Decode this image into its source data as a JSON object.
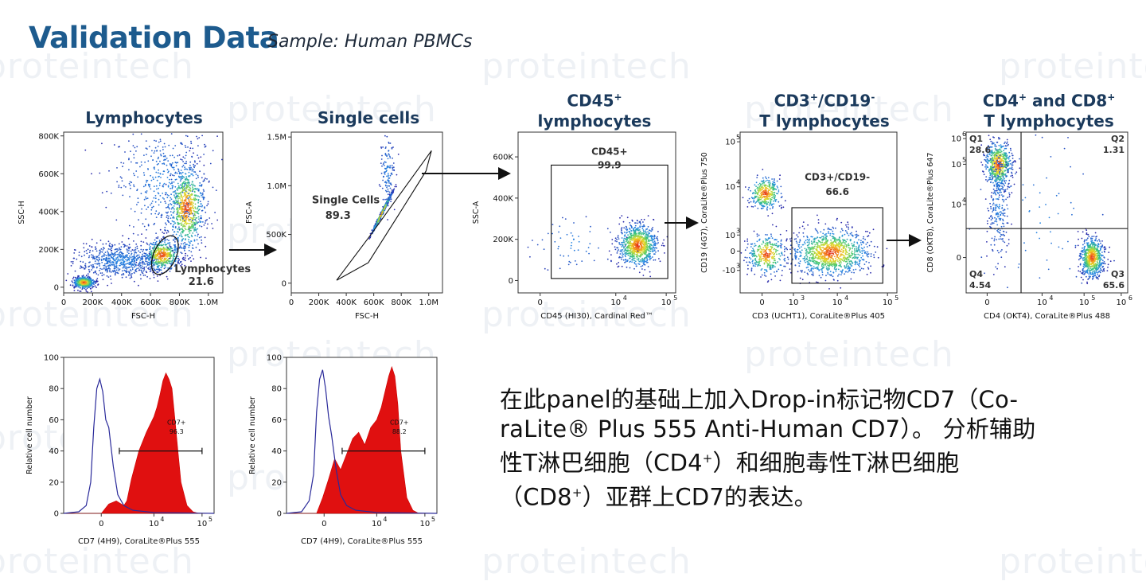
{
  "header": {
    "title": "Validation Data",
    "subtitle": "Sample: Human PBMCs"
  },
  "watermark": {
    "text": "proteintech"
  },
  "panels_titles": {
    "p1": "Lymphocytes",
    "p2": "Single cells",
    "p3_line1": "CD45",
    "p3_sup": "+",
    "p3_line2": "lymphocytes",
    "p4_line1a": "CD3",
    "p4_sup1": "+",
    "p4_line1b": "/CD19",
    "p4_sup2": "-",
    "p4_line2": "T lymphocytes",
    "p5_line1a": "CD4",
    "p5_sup1": "+",
    "p5_line1b": " and CD8",
    "p5_sup2": "+",
    "p5_line2": "T lymphocytes"
  },
  "description": {
    "line1": "在此panel的基础上加入Drop-in标记物CD7（Co-",
    "line2": "raLite® Plus 555 Anti-Human CD7）。 分析辅助",
    "line3a": "性T淋巴细胞（CD4",
    "line3sup": "+",
    "line3b": "）和细胞毒性T淋巴细胞",
    "line4a": "（CD8",
    "line4sup": "+",
    "line4b": "）亚群上CD7的表达。"
  },
  "chart_data": [
    {
      "type": "scatter",
      "xlabel": "FSC-H",
      "ylabel": "SSC-H",
      "xticks": [
        "0",
        "200K",
        "400K",
        "600K",
        "800K",
        "1.0M"
      ],
      "yticks": [
        "0",
        "200K",
        "400K",
        "600K",
        "800K"
      ],
      "xlim": [
        0,
        1100000
      ],
      "ylim": [
        -30000,
        820000
      ],
      "gate": {
        "shape": "ellipse",
        "name": "Lymphocytes",
        "percent": "21.6"
      },
      "clusters": [
        {
          "x": 140000,
          "y": 25000,
          "sx": 35000,
          "sy": 15000,
          "n": 500,
          "dense": true
        },
        {
          "x": 400000,
          "y": 140000,
          "sx": 150000,
          "sy": 45000,
          "n": 700,
          "dense": false
        },
        {
          "x": 680000,
          "y": 170000,
          "sx": 60000,
          "sy": 40000,
          "n": 500,
          "dense": true
        },
        {
          "x": 850000,
          "y": 420000,
          "sx": 60000,
          "sy": 110000,
          "n": 800,
          "dense": true
        },
        {
          "x": 700000,
          "y": 550000,
          "sx": 180000,
          "sy": 150000,
          "n": 450,
          "dense": false
        }
      ]
    },
    {
      "type": "scatter",
      "xlabel": "FSC-H",
      "ylabel": "FSC-A",
      "xticks": [
        "0",
        "200K",
        "400K",
        "600K",
        "800K",
        "1.0M"
      ],
      "yticks": [
        "0",
        "500K",
        "1.0M",
        "1.5M"
      ],
      "xlim": [
        0,
        1100000
      ],
      "ylim": [
        -100000,
        1550000
      ],
      "gate": {
        "shape": "polygon",
        "name": "Single Cells",
        "percent": "89.3"
      },
      "clusters": [
        {
          "x": 660000,
          "y": 720000,
          "sx": 35000,
          "sy": 110000,
          "n": 700,
          "dense": true,
          "corr": 0.9
        },
        {
          "x": 700000,
          "y": 1150000,
          "sx": 25000,
          "sy": 180000,
          "n": 120,
          "dense": false
        }
      ]
    },
    {
      "type": "scatter",
      "xlabel": "CD45 (HI30), Cardinal Red™",
      "ylabel": "SSC-A",
      "xticks": [
        "0",
        "10",
        "10"
      ],
      "xtick_exp": [
        "",
        "4",
        "5"
      ],
      "yticks": [
        "0",
        "200K",
        "400K",
        "600K"
      ],
      "xlim": [
        0,
        100
      ],
      "ylim": [
        -60000,
        720000
      ],
      "gate": {
        "shape": "rect",
        "name": "CD45+",
        "percent": "99.9"
      },
      "clusters": [
        {
          "x": 76,
          "y": 170000,
          "sx": 6,
          "sy": 50000,
          "n": 900,
          "dense": true
        },
        {
          "x": 35,
          "y": 180000,
          "sx": 14,
          "sy": 70000,
          "n": 60,
          "dense": false
        }
      ]
    },
    {
      "type": "scatter",
      "xlabel": "CD3 (UCHT1), CoraLite®Plus 405",
      "ylabel": "CD19 (4G7), CoraLite®Plus 750",
      "xticks": [
        "0",
        "10",
        "10",
        "10"
      ],
      "xtick_exp": [
        "",
        "3",
        "4",
        "5"
      ],
      "yticks": [
        "-10",
        "0",
        "10",
        "10",
        "10"
      ],
      "ytick_exp": [
        "3",
        "",
        "3",
        "4",
        "5"
      ],
      "xlim": [
        0,
        100
      ],
      "ylim": [
        0,
        100
      ],
      "gate": {
        "shape": "rect",
        "name": "CD3+/CD19-",
        "percent": "66.6"
      },
      "clusters": [
        {
          "x": 16,
          "y": 62,
          "sx": 5,
          "sy": 5,
          "n": 350,
          "dense": true
        },
        {
          "x": 17,
          "y": 24,
          "sx": 6,
          "sy": 6,
          "n": 350,
          "dense": true
        },
        {
          "x": 58,
          "y": 25,
          "sx": 12,
          "sy": 7,
          "n": 1100,
          "dense": true
        }
      ]
    },
    {
      "type": "scatter",
      "xlabel": "CD4 (OKT4), CoraLite®Plus 488",
      "ylabel": "CD8 (OKT8), CoraLite®Plus 647",
      "xticks": [
        "0",
        "10",
        "10",
        "10"
      ],
      "xtick_exp": [
        "",
        "4",
        "5",
        "6"
      ],
      "yticks": [
        "0",
        "10",
        "10",
        "10"
      ],
      "ytick_exp": [
        "",
        "4",
        "5",
        "6"
      ],
      "xlim": [
        0,
        100
      ],
      "ylim": [
        0,
        100
      ],
      "quadrants": {
        "Q1": "28.6",
        "Q2": "1.31",
        "Q3": "65.6",
        "Q4": "4.54"
      },
      "clusters": [
        {
          "x": 20,
          "y": 80,
          "sx": 4,
          "sy": 7,
          "n": 600,
          "dense": true
        },
        {
          "x": 20,
          "y": 55,
          "sx": 3,
          "sy": 18,
          "n": 250,
          "dense": false
        },
        {
          "x": 78,
          "y": 22,
          "sx": 3.5,
          "sy": 6,
          "n": 700,
          "dense": true
        },
        {
          "x": 45,
          "y": 45,
          "sx": 25,
          "sy": 30,
          "n": 80,
          "dense": false
        }
      ]
    },
    {
      "type": "area",
      "xlabel": "CD7 (4H9), CoraLite®Plus 555",
      "ylabel": "Relative cell number",
      "xticks": [
        "0",
        "10",
        "10"
      ],
      "xtick_exp": [
        "",
        "4",
        "5"
      ],
      "yticks": [
        "0",
        "20",
        "40",
        "60",
        "80",
        "100"
      ],
      "ylim": [
        0,
        100
      ],
      "gate_label": "CD7+",
      "gate_percent": "96.3",
      "series": [
        {
          "type": "line",
          "x": [
            0,
            10,
            15,
            18,
            20,
            22,
            24,
            26,
            28,
            30,
            33,
            36,
            40,
            46,
            60,
            100
          ],
          "y": [
            0,
            1,
            5,
            20,
            55,
            80,
            86,
            78,
            60,
            55,
            30,
            12,
            5,
            2,
            0.5,
            0
          ]
        },
        {
          "type": "area",
          "x": [
            0,
            25,
            30,
            35,
            40,
            42,
            45,
            50,
            55,
            60,
            62,
            64,
            66,
            68,
            70,
            72,
            74,
            76,
            78,
            82,
            86,
            90,
            100
          ],
          "y": [
            0,
            0,
            6,
            8,
            5,
            8,
            22,
            40,
            52,
            62,
            68,
            76,
            85,
            90,
            86,
            80,
            60,
            40,
            20,
            5,
            1,
            0,
            0
          ]
        }
      ]
    },
    {
      "type": "area",
      "xlabel": "CD7 (4H9), CoraLite®Plus 555",
      "ylabel": "Relative cell number",
      "xticks": [
        "0",
        "10",
        "10"
      ],
      "xtick_exp": [
        "",
        "4",
        "5"
      ],
      "yticks": [
        "0",
        "20",
        "40",
        "60",
        "80",
        "100"
      ],
      "ylim": [
        0,
        100
      ],
      "gate_label": "CD7+",
      "gate_percent": "88.2",
      "series": [
        {
          "type": "line",
          "x": [
            0,
            10,
            15,
            18,
            20,
            22,
            24,
            26,
            28,
            30,
            33,
            36,
            40,
            46,
            60,
            100
          ],
          "y": [
            0,
            1,
            8,
            25,
            65,
            86,
            92,
            80,
            62,
            50,
            28,
            12,
            5,
            2,
            0.5,
            0
          ]
        },
        {
          "type": "area",
          "x": [
            0,
            20,
            24,
            28,
            32,
            36,
            40,
            44,
            48,
            52,
            56,
            60,
            63,
            66,
            68,
            70,
            72,
            74,
            76,
            80,
            84,
            88,
            100
          ],
          "y": [
            0,
            0,
            10,
            22,
            35,
            28,
            38,
            48,
            52,
            44,
            55,
            60,
            68,
            80,
            88,
            94,
            88,
            70,
            40,
            10,
            2,
            0,
            0
          ]
        }
      ]
    }
  ]
}
